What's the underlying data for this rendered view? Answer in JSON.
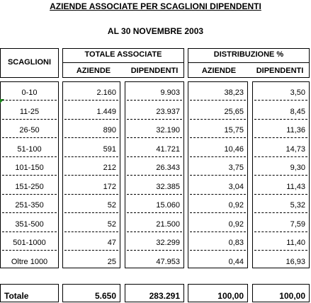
{
  "title": "AZIENDE ASSOCIATE PER SCAGLIONI DIPENDENTI",
  "subtitle": "AL 30 NOVEMBRE  2003",
  "headers": {
    "scaglioni": "SCAGLIONI",
    "totale_associate": "TOTALE ASSOCIATE",
    "distribuzione": "DISTRIBUZIONE %",
    "aziende": "AZIENDE",
    "dipendenti": "DIPENDENTI"
  },
  "rows": [
    {
      "scaglione": "0-10",
      "aziende": "2.160",
      "dipendenti": "9.903",
      "dist_aziende": "38,23",
      "dist_dipendenti": "3,50"
    },
    {
      "scaglione": "11-25",
      "aziende": "1.449",
      "dipendenti": "23.937",
      "dist_aziende": "25,65",
      "dist_dipendenti": "8,45"
    },
    {
      "scaglione": "26-50",
      "aziende": "890",
      "dipendenti": "32.190",
      "dist_aziende": "15,75",
      "dist_dipendenti": "11,36"
    },
    {
      "scaglione": "51-100",
      "aziende": "591",
      "dipendenti": "41.721",
      "dist_aziende": "10,46",
      "dist_dipendenti": "14,73"
    },
    {
      "scaglione": "101-150",
      "aziende": "212",
      "dipendenti": "26.343",
      "dist_aziende": "3,75",
      "dist_dipendenti": "9,30"
    },
    {
      "scaglione": "151-250",
      "aziende": "172",
      "dipendenti": "32.385",
      "dist_aziende": "3,04",
      "dist_dipendenti": "11,43"
    },
    {
      "scaglione": "251-350",
      "aziende": "52",
      "dipendenti": "15.060",
      "dist_aziende": "0,92",
      "dist_dipendenti": "5,32"
    },
    {
      "scaglione": "351-500",
      "aziende": "52",
      "dipendenti": "21.500",
      "dist_aziende": "0,92",
      "dist_dipendenti": "7,59"
    },
    {
      "scaglione": "501-1000",
      "aziende": "47",
      "dipendenti": "32.299",
      "dist_aziende": "0,83",
      "dist_dipendenti": "11,40"
    },
    {
      "scaglione": "Oltre 1000",
      "aziende": "25",
      "dipendenti": "47.953",
      "dist_aziende": "0,44",
      "dist_dipendenti": "16,93"
    }
  ],
  "totale": {
    "label": "Totale",
    "aziende": "5.650",
    "dipendenti": "283.291",
    "dist_aziende": "100,00",
    "dist_dipendenti": "100,00"
  }
}
